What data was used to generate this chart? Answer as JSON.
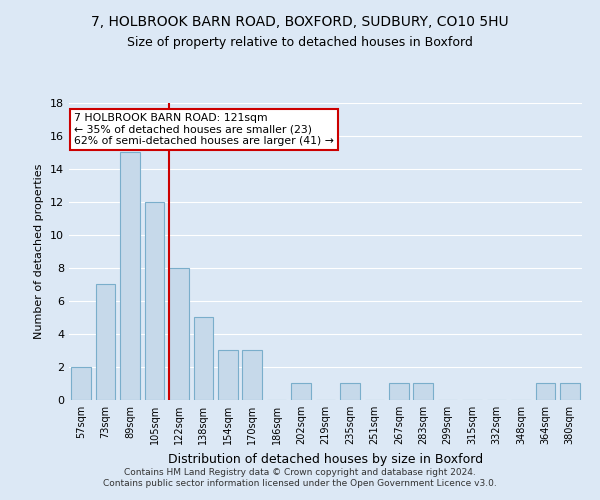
{
  "title1": "7, HOLBROOK BARN ROAD, BOXFORD, SUDBURY, CO10 5HU",
  "title2": "Size of property relative to detached houses in Boxford",
  "xlabel": "Distribution of detached houses by size in Boxford",
  "ylabel": "Number of detached properties",
  "bar_labels": [
    "57sqm",
    "73sqm",
    "89sqm",
    "105sqm",
    "122sqm",
    "138sqm",
    "154sqm",
    "170sqm",
    "186sqm",
    "202sqm",
    "219sqm",
    "235sqm",
    "251sqm",
    "267sqm",
    "283sqm",
    "299sqm",
    "315sqm",
    "332sqm",
    "348sqm",
    "364sqm",
    "380sqm"
  ],
  "bar_values": [
    2,
    7,
    15,
    12,
    8,
    5,
    3,
    3,
    0,
    1,
    0,
    1,
    0,
    1,
    1,
    0,
    0,
    0,
    0,
    1,
    1
  ],
  "bar_color": "#c6d9ea",
  "bar_edgecolor": "#7aaecb",
  "vline_color": "#cc0000",
  "vline_x_index": 4,
  "annotation_text": "7 HOLBROOK BARN ROAD: 121sqm\n← 35% of detached houses are smaller (23)\n62% of semi-detached houses are larger (41) →",
  "annotation_box_color": "white",
  "annotation_box_edgecolor": "#cc0000",
  "ylim": [
    0,
    18
  ],
  "yticks": [
    0,
    2,
    4,
    6,
    8,
    10,
    12,
    14,
    16,
    18
  ],
  "background_color": "#dce8f5",
  "plot_background": "#dce8f5",
  "grid_color": "white",
  "title1_fontsize": 10,
  "title2_fontsize": 9,
  "ylabel_fontsize": 8,
  "xlabel_fontsize": 9,
  "footer": "Contains HM Land Registry data © Crown copyright and database right 2024.\nContains public sector information licensed under the Open Government Licence v3.0."
}
